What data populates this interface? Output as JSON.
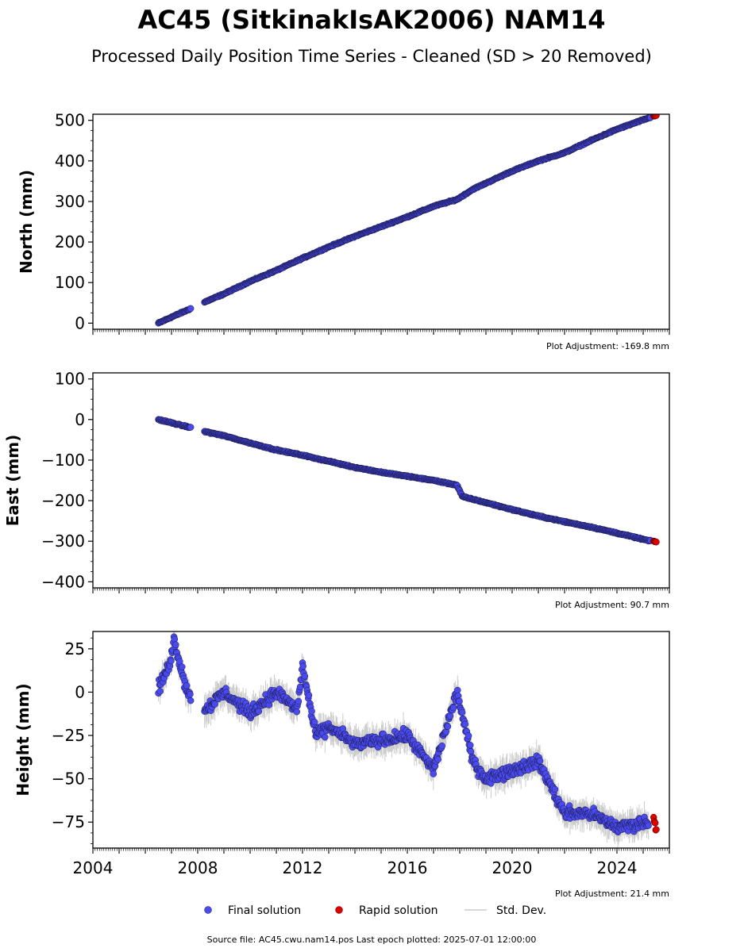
{
  "title": "AC45 (SitkinakIsAK2006) NAM14",
  "subtitle": "Processed Daily Position Time Series - Cleaned (SD > 20 Removed)",
  "legend": {
    "final": "Final solution",
    "rapid": "Rapid solution",
    "std": "Std. Dev."
  },
  "footer": "Source file: AC45.cwu.nam14.pos  Last epoch plotted: 2025-07-01 12:00:00",
  "colors": {
    "final": "#4a4aee",
    "rapid": "#e00000",
    "std": "#cccccc",
    "marker_edge": "#1a1a4a"
  },
  "chart_data": [
    {
      "type": "scatter",
      "ylabel": "North (mm)",
      "adjustment": "Plot Adjustment: -169.8 mm",
      "xlim": [
        2004.0,
        2026.0
      ],
      "ylim": [
        -15,
        515
      ],
      "yticks": [
        0,
        100,
        200,
        300,
        400,
        500
      ],
      "ytick_labels": [
        "0",
        "100",
        "200",
        "300",
        "400",
        "500"
      ],
      "series": [
        {
          "name": "Final solution",
          "points": [
            [
              2006.5,
              0
            ],
            [
              2007.0,
              15
            ],
            [
              2007.6,
              32
            ],
            [
              2008.3,
              53
            ],
            [
              2009.0,
              72
            ],
            [
              2010.0,
              103
            ],
            [
              2011.0,
              130
            ],
            [
              2012.0,
              160
            ],
            [
              2013.0,
              188
            ],
            [
              2014.0,
              214
            ],
            [
              2015.0,
              238
            ],
            [
              2016.0,
              262
            ],
            [
              2017.0,
              288
            ],
            [
              2017.9,
              305
            ],
            [
              2018.5,
              330
            ],
            [
              2019.0,
              345
            ],
            [
              2020.0,
              375
            ],
            [
              2021.0,
              400
            ],
            [
              2022.0,
              420
            ],
            [
              2023.0,
              450
            ],
            [
              2024.0,
              478
            ],
            [
              2025.3,
              508
            ]
          ]
        },
        {
          "name": "Rapid solution",
          "points": [
            [
              2025.4,
              510
            ],
            [
              2025.5,
              512
            ]
          ]
        }
      ]
    },
    {
      "type": "scatter",
      "ylabel": "East (mm)",
      "adjustment": "Plot Adjustment: 90.7 mm",
      "xlim": [
        2004.0,
        2026.0
      ],
      "ylim": [
        -415,
        115
      ],
      "yticks": [
        -400,
        -300,
        -200,
        -100,
        0,
        100
      ],
      "ytick_labels": [
        "−400",
        "−300",
        "−200",
        "−100",
        "0",
        "100"
      ],
      "series": [
        {
          "name": "Final solution",
          "points": [
            [
              2006.5,
              0
            ],
            [
              2007.6,
              -18
            ],
            [
              2008.3,
              -30
            ],
            [
              2009.0,
              -40
            ],
            [
              2010.0,
              -58
            ],
            [
              2011.0,
              -75
            ],
            [
              2012.0,
              -88
            ],
            [
              2013.0,
              -103
            ],
            [
              2014.0,
              -118
            ],
            [
              2015.0,
              -130
            ],
            [
              2016.0,
              -140
            ],
            [
              2017.0,
              -150
            ],
            [
              2017.9,
              -162
            ],
            [
              2018.1,
              -190
            ],
            [
              2019.0,
              -205
            ],
            [
              2020.0,
              -222
            ],
            [
              2021.0,
              -238
            ],
            [
              2022.0,
              -252
            ],
            [
              2023.0,
              -265
            ],
            [
              2024.0,
              -280
            ],
            [
              2025.3,
              -300
            ]
          ]
        },
        {
          "name": "Rapid solution",
          "points": [
            [
              2025.4,
              -300
            ],
            [
              2025.5,
              -302
            ]
          ]
        }
      ]
    },
    {
      "type": "scatter",
      "ylabel": "Height (mm)",
      "adjustment": "Plot Adjustment: 21.4 mm",
      "xlim": [
        2004.0,
        2026.0
      ],
      "ylim": [
        -90,
        35
      ],
      "yticks": [
        -75,
        -50,
        -25,
        0,
        25
      ],
      "ytick_labels": [
        "−75",
        "−50",
        "−25",
        "0",
        "25"
      ],
      "xticks": [
        2004,
        2008,
        2012,
        2016,
        2020,
        2024
      ],
      "xtick_labels": [
        "2004",
        "2008",
        "2012",
        "2016",
        "2020",
        "2024"
      ],
      "series": [
        {
          "name": "Final solution",
          "points": [
            [
              2006.5,
              2
            ],
            [
              2006.9,
              15
            ],
            [
              2007.1,
              30
            ],
            [
              2007.6,
              0
            ],
            [
              2008.3,
              -10
            ],
            [
              2009.0,
              0
            ],
            [
              2010.0,
              -12
            ],
            [
              2011.0,
              0
            ],
            [
              2011.8,
              -10
            ],
            [
              2012.0,
              15
            ],
            [
              2012.5,
              -25
            ],
            [
              2013.0,
              -20
            ],
            [
              2014.0,
              -30
            ],
            [
              2015.0,
              -28
            ],
            [
              2016.0,
              -25
            ],
            [
              2017.0,
              -45
            ],
            [
              2017.9,
              0
            ],
            [
              2018.5,
              -40
            ],
            [
              2019.0,
              -50
            ],
            [
              2020.0,
              -45
            ],
            [
              2021.0,
              -40
            ],
            [
              2022.0,
              -70
            ],
            [
              2023.0,
              -70
            ],
            [
              2024.0,
              -78
            ],
            [
              2025.2,
              -75
            ]
          ]
        },
        {
          "name": "Rapid solution",
          "points": [
            [
              2025.4,
              -72
            ],
            [
              2025.5,
              -80
            ]
          ]
        }
      ]
    }
  ]
}
